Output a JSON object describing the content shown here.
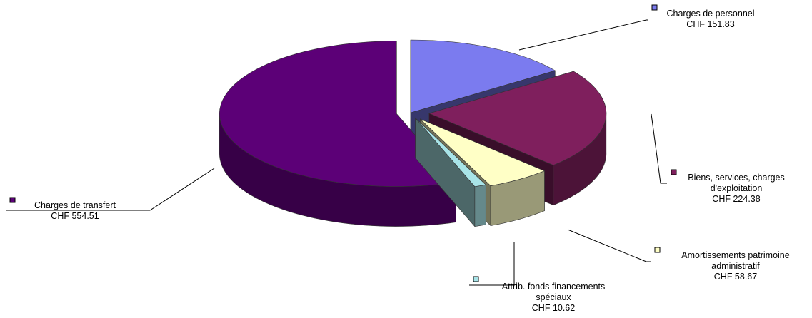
{
  "chart_data": {
    "type": "pie",
    "title": "",
    "series": [
      {
        "label_lines": [
          "Charges de personnel"
        ],
        "value_text": "CHF 151.83",
        "value": 151.83,
        "color": "#7b7bef",
        "exploded": false
      },
      {
        "label_lines": [
          "Biens, services, charges",
          "d'exploitation"
        ],
        "value_text": "CHF 224.38",
        "value": 224.38,
        "color": "#7f1f5d",
        "exploded": true
      },
      {
        "label_lines": [
          "Amortissements patrimoine",
          "administratif"
        ],
        "value_text": "CHF 58.67",
        "value": 58.67,
        "color": "#ffffc6",
        "exploded": true
      },
      {
        "label_lines": [
          "Attrib. fonds financements",
          "spéciaux"
        ],
        "value_text": "CHF 10.62",
        "value": 10.62,
        "color": "#a8e4e8",
        "exploded": true
      },
      {
        "label_lines": [
          "Charges de transfert"
        ],
        "value_text": "CHF 554.51",
        "value": 554.51,
        "color": "#5c0077",
        "exploded": true
      }
    ]
  }
}
